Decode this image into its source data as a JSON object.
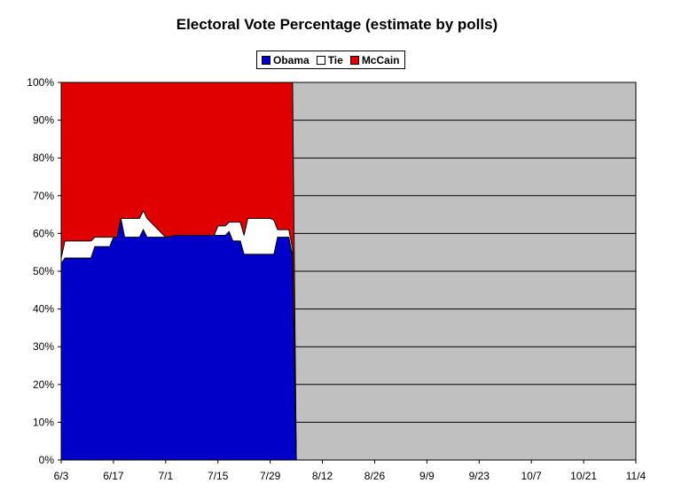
{
  "chart_data": {
    "type": "area",
    "title": "Electoral Vote Percentage (estimate by polls)",
    "xlabel": "",
    "ylabel": "",
    "x_ticks": [
      "6/3",
      "6/17",
      "7/1",
      "7/15",
      "7/29",
      "8/12",
      "8/26",
      "9/9",
      "9/23",
      "10/7",
      "10/21",
      "11/4"
    ],
    "y_ticks": [
      "0%",
      "10%",
      "20%",
      "30%",
      "40%",
      "50%",
      "60%",
      "70%",
      "80%",
      "90%",
      "100%"
    ],
    "ylim": [
      0,
      100
    ],
    "xlim": [
      "6/3",
      "11/4"
    ],
    "stacked": true,
    "grid": "horizontal",
    "legend_position": "top-center",
    "background_color": "#c0c0c0",
    "series": [
      {
        "name": "Obama",
        "color": "#0000c8",
        "points": [
          [
            "6/3",
            52
          ],
          [
            "6/4",
            53.5
          ],
          [
            "6/11",
            53.5
          ],
          [
            "6/12",
            56.5
          ],
          [
            "6/16",
            56.5
          ],
          [
            "6/17",
            59
          ],
          [
            "6/18",
            59
          ],
          [
            "6/19",
            64
          ],
          [
            "6/20",
            59
          ],
          [
            "6/24",
            59
          ],
          [
            "6/25",
            61
          ],
          [
            "6/26",
            59
          ],
          [
            "7/1",
            59
          ],
          [
            "7/4",
            59.5
          ],
          [
            "7/17",
            59.5
          ],
          [
            "7/18",
            60.5
          ],
          [
            "7/19",
            58
          ],
          [
            "7/21",
            58
          ],
          [
            "7/22",
            54.5
          ],
          [
            "7/30",
            54.5
          ],
          [
            "7/31",
            59
          ],
          [
            "8/3",
            59
          ],
          [
            "8/4",
            54
          ],
          [
            "8/5",
            0
          ]
        ]
      },
      {
        "name": "Tie",
        "color": "#ffffff",
        "points": [
          [
            "6/3",
            1.5
          ],
          [
            "6/4",
            4.5
          ],
          [
            "6/11",
            4.5
          ],
          [
            "6/12",
            2.5
          ],
          [
            "6/16",
            2.5
          ],
          [
            "6/17",
            0
          ],
          [
            "6/18",
            0
          ],
          [
            "6/19",
            0
          ],
          [
            "6/20",
            5
          ],
          [
            "6/24",
            5
          ],
          [
            "6/25",
            5
          ],
          [
            "6/26",
            5
          ],
          [
            "7/1",
            0
          ],
          [
            "7/4",
            0
          ],
          [
            "7/14",
            0
          ],
          [
            "7/15",
            2.5
          ],
          [
            "7/17",
            2.5
          ],
          [
            "7/18",
            2.5
          ],
          [
            "7/19",
            5
          ],
          [
            "7/21",
            5
          ],
          [
            "7/22",
            5
          ],
          [
            "7/23",
            9.5
          ],
          [
            "7/29",
            9.5
          ],
          [
            "7/30",
            9
          ],
          [
            "7/31",
            2
          ],
          [
            "8/3",
            2
          ],
          [
            "8/4",
            2
          ],
          [
            "8/5",
            0
          ]
        ]
      },
      {
        "name": "McCain",
        "color": "#e00000",
        "points": [
          [
            "6/3",
            100
          ],
          [
            "8/4",
            100
          ],
          [
            "8/5",
            0
          ]
        ],
        "note_stack": "remainder to 100%"
      }
    ]
  }
}
